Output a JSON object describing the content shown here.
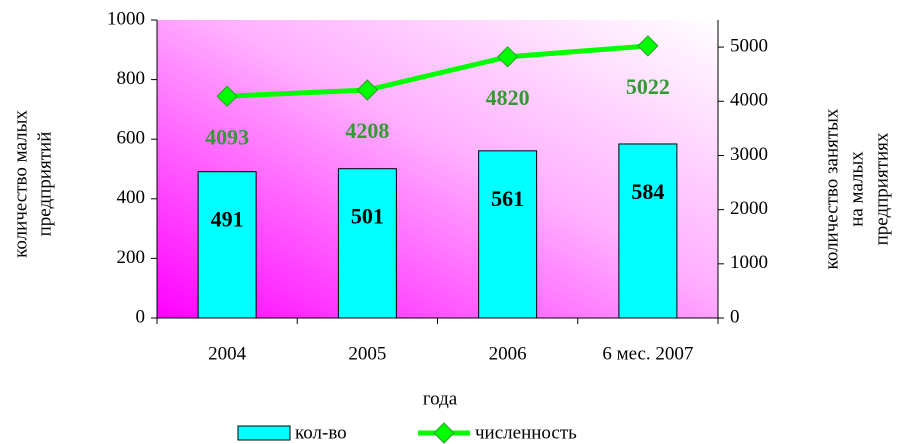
{
  "chart_data": {
    "type": "bar_line",
    "categories": [
      "2004",
      "2005",
      "2006",
      "6 мес. 2007"
    ],
    "x_label": "года",
    "y_label": [
      "количество малых",
      "предприятий"
    ],
    "y2_label": [
      "количество занятых",
      "на малых",
      "предприятиях"
    ],
    "ylim": [
      0,
      1000
    ],
    "yticks": [
      0,
      200,
      400,
      600,
      800,
      1000
    ],
    "y2lim": [
      0,
      5500
    ],
    "y2ticks": [
      0,
      1000,
      2000,
      3000,
      4000,
      5000
    ],
    "series": [
      {
        "name": "кол-во",
        "type": "bar",
        "color": "#00ffff",
        "values": [
          491,
          501,
          561,
          584
        ]
      },
      {
        "name": "численность",
        "type": "line",
        "axis": "y2",
        "color": "#00ff00",
        "label_color": "#339933",
        "values": [
          4093,
          4208,
          4820,
          5022
        ]
      }
    ]
  }
}
